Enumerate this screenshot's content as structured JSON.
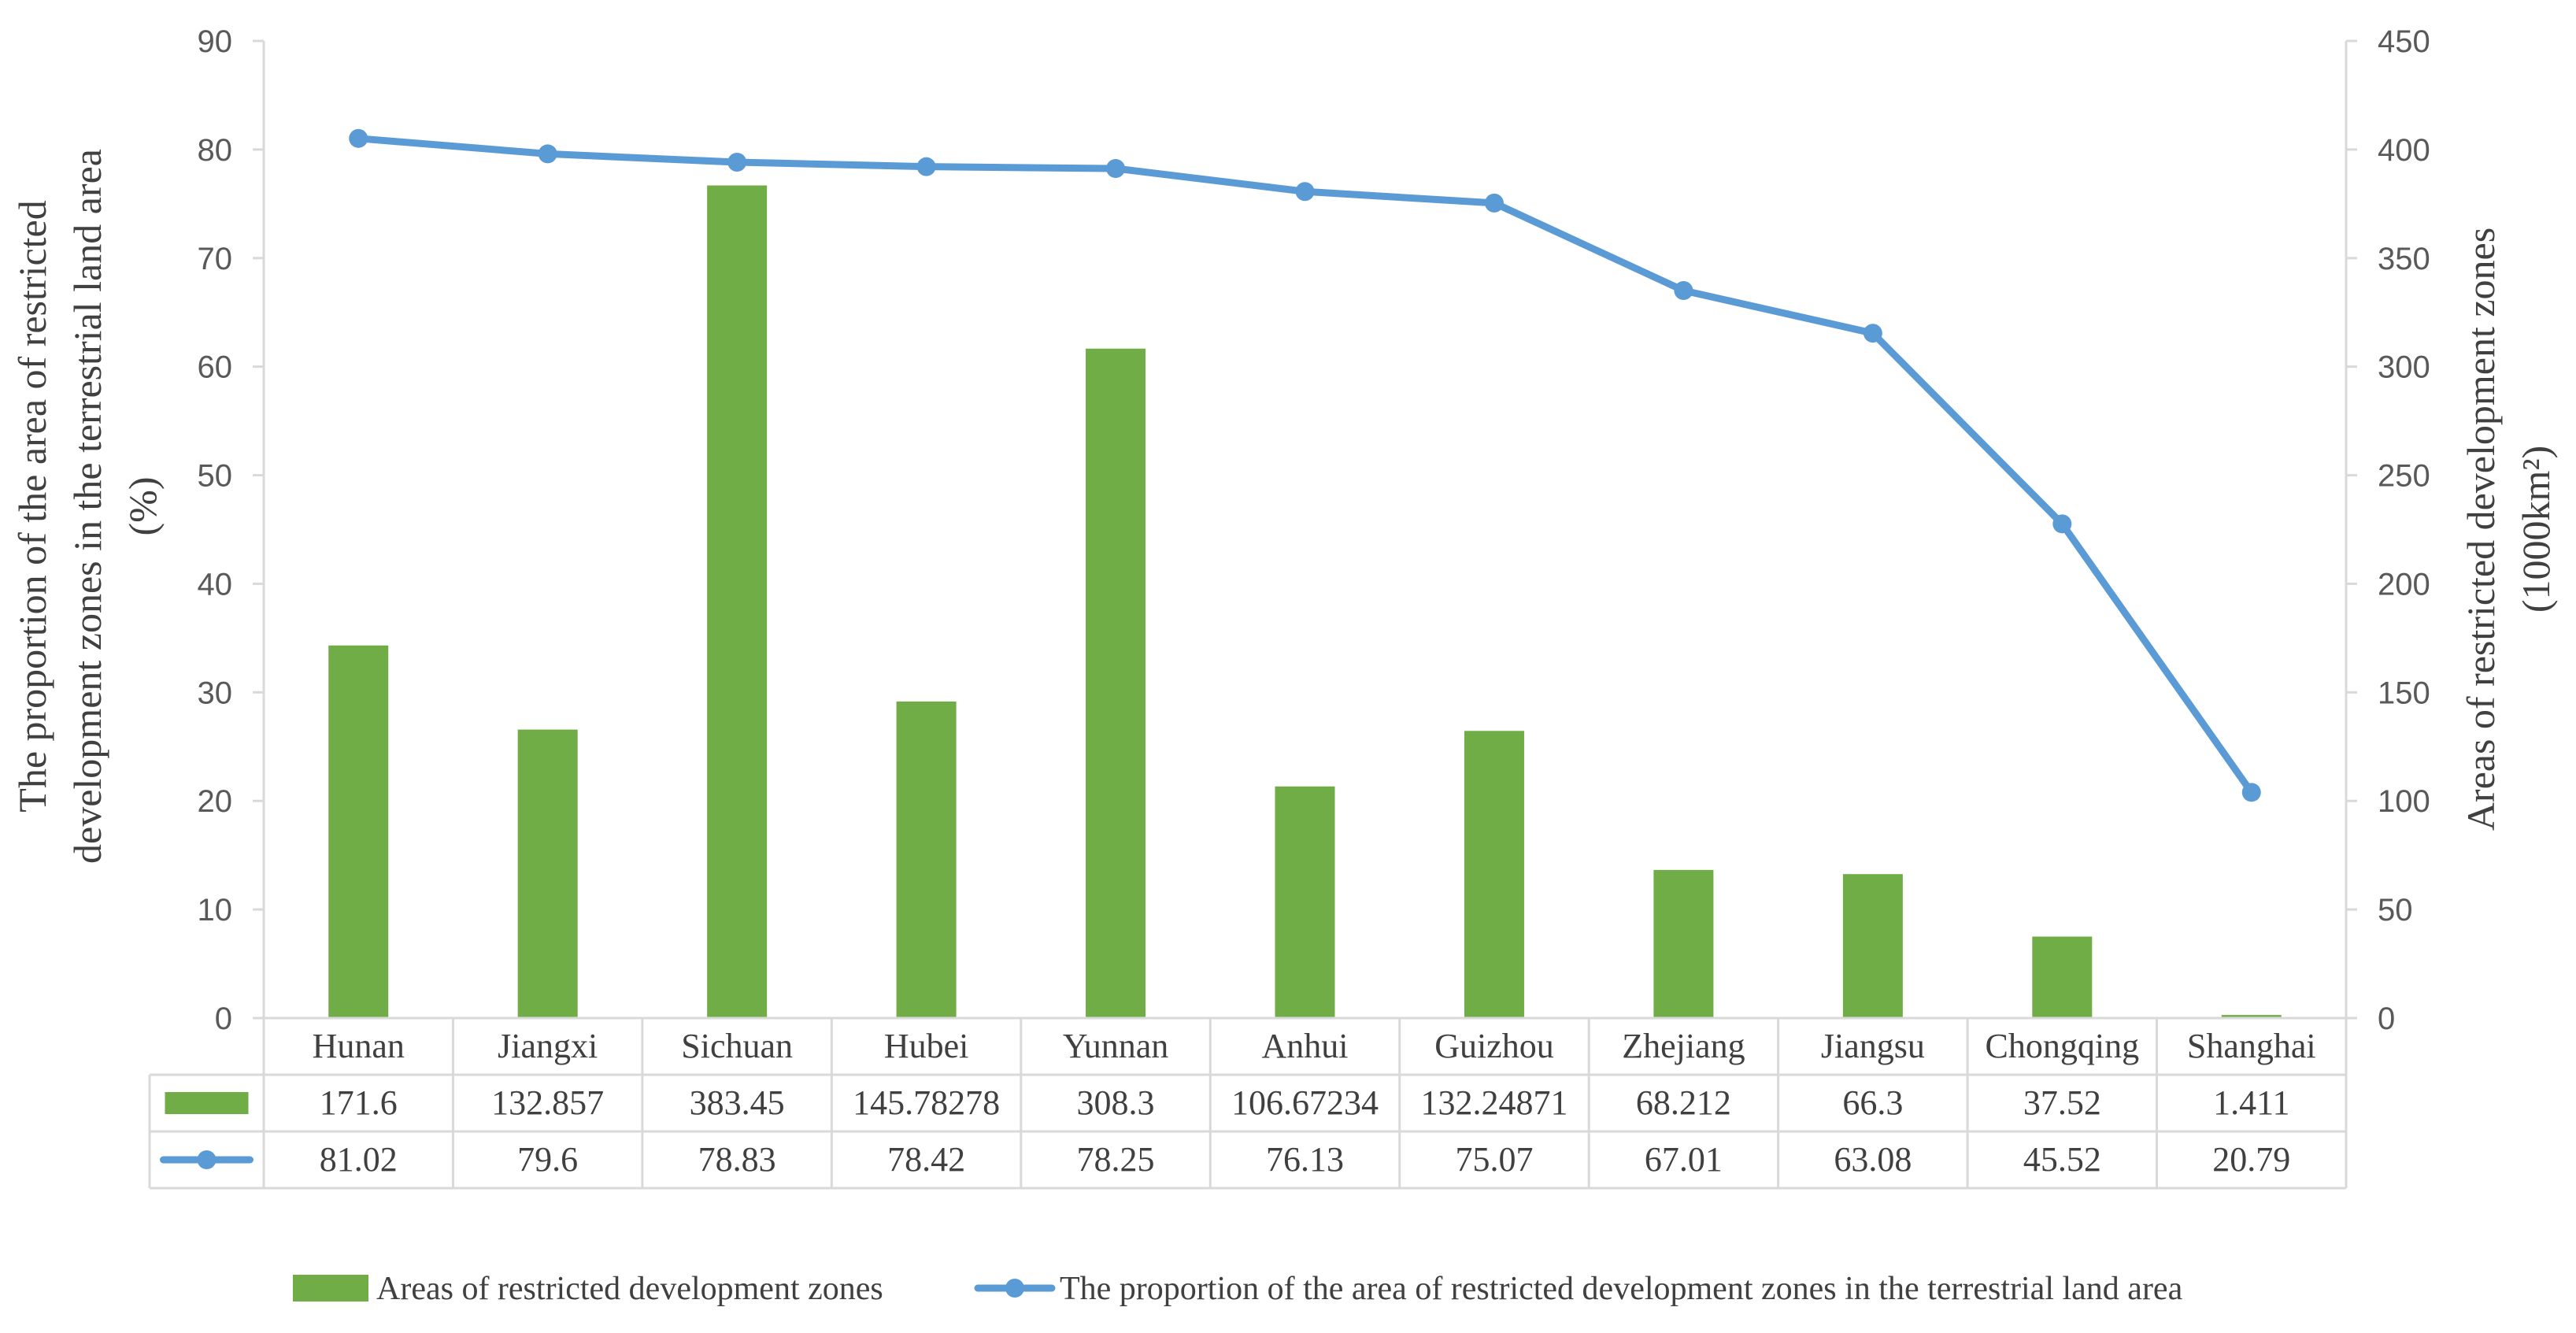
{
  "chart_data": {
    "type": "bar+line",
    "categories": [
      "Hunan",
      "Jiangxi",
      "Sichuan",
      "Hubei",
      "Yunnan",
      "Anhui",
      "Guizhou",
      "Zhejiang",
      "Jiangsu",
      "Chongqing",
      "Shanghai"
    ],
    "series": [
      {
        "name": "Areas of restricted development zones",
        "type": "bar",
        "axis": "right",
        "values": [
          171.6,
          132.857,
          383.45,
          145.78278,
          308.3,
          106.67234,
          132.24871,
          68.212,
          66.3,
          37.52,
          1.411
        ],
        "labels": [
          "171.6",
          "132.857",
          "383.45",
          "145.78278",
          "308.3",
          "106.67234",
          "132.24871",
          "68.212",
          "66.3",
          "37.52",
          "1.411"
        ],
        "color": "#70AD47"
      },
      {
        "name": "The proportion of the area of restricted development zones in the terrestrial land area",
        "type": "line",
        "axis": "left",
        "values": [
          81.02,
          79.6,
          78.83,
          78.42,
          78.25,
          76.13,
          75.07,
          67.01,
          63.08,
          45.52,
          20.79
        ],
        "labels": [
          "81.02",
          "79.6",
          "78.83",
          "78.42",
          "78.25",
          "76.13",
          "75.07",
          "67.01",
          "63.08",
          "45.52",
          "20.79"
        ],
        "color": "#5B9BD5"
      }
    ],
    "y_left": {
      "label_lines": [
        "The proportion of the area of restricted",
        "development zones in the terrestrial land area",
        "(%)"
      ],
      "range": [
        0,
        90
      ],
      "ticks": [
        "0",
        "10",
        "20",
        "30",
        "40",
        "50",
        "60",
        "70",
        "80",
        "90"
      ]
    },
    "y_right": {
      "label_lines": [
        "Areas of restricted development zones",
        "(1000km²)"
      ],
      "range": [
        0,
        450
      ],
      "ticks": [
        "0",
        "50",
        "100",
        "150",
        "200",
        "250",
        "300",
        "350",
        "400",
        "450"
      ]
    },
    "legend_position": "bottom",
    "grid": false,
    "data_table": true
  }
}
